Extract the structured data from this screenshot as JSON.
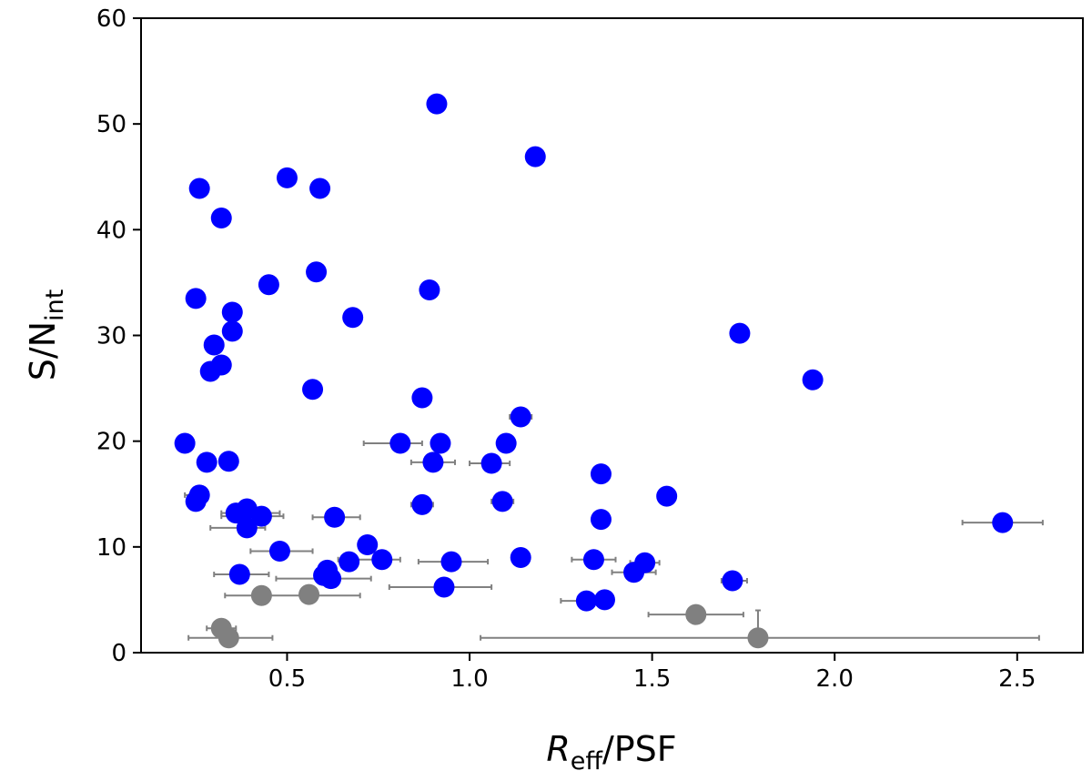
{
  "chart_data": {
    "type": "scatter",
    "title": "",
    "xlabel": {
      "main": "R",
      "sub": "eff",
      "rest": "/PSF"
    },
    "ylabel": {
      "main": "S/N",
      "sub": "int"
    },
    "xlim": [
      0.1,
      2.68
    ],
    "ylim": [
      0,
      60
    ],
    "xticks": [
      0.5,
      1.0,
      1.5,
      2.0,
      2.5
    ],
    "xtick_labels": [
      "0.5",
      "1.0",
      "1.5",
      "2.0",
      "2.5"
    ],
    "yticks": [
      0,
      10,
      20,
      30,
      40,
      50,
      60
    ],
    "ytick_labels": [
      "0",
      "10",
      "20",
      "30",
      "40",
      "50",
      "60"
    ],
    "grid": false,
    "colors": {
      "blue": "#0000ff",
      "gray": "#808080",
      "errorbar": "#808080"
    },
    "series": [
      {
        "color": "blue",
        "points": [
          {
            "x": 0.91,
            "y": 51.9
          },
          {
            "x": 1.18,
            "y": 46.9
          },
          {
            "x": 0.26,
            "y": 43.9
          },
          {
            "x": 0.5,
            "y": 44.9
          },
          {
            "x": 0.59,
            "y": 43.9
          },
          {
            "x": 0.32,
            "y": 41.1
          },
          {
            "x": 0.58,
            "y": 36.0
          },
          {
            "x": 0.45,
            "y": 34.8
          },
          {
            "x": 0.89,
            "y": 34.3
          },
          {
            "x": 0.25,
            "y": 33.5
          },
          {
            "x": 0.35,
            "y": 32.2
          },
          {
            "x": 0.68,
            "y": 31.7
          },
          {
            "x": 0.35,
            "y": 30.4
          },
          {
            "x": 0.3,
            "y": 29.1
          },
          {
            "x": 0.32,
            "y": 27.2
          },
          {
            "x": 0.29,
            "y": 26.6
          },
          {
            "x": 1.74,
            "y": 30.2
          },
          {
            "x": 1.94,
            "y": 25.8
          },
          {
            "x": 0.57,
            "y": 24.9
          },
          {
            "x": 0.87,
            "y": 24.1
          },
          {
            "x": 1.14,
            "y": 22.3
          },
          {
            "x": 0.22,
            "y": 19.8
          },
          {
            "x": 0.81,
            "y": 19.8
          },
          {
            "x": 0.92,
            "y": 19.8
          },
          {
            "x": 1.1,
            "y": 19.8
          },
          {
            "x": 0.28,
            "y": 18.0
          },
          {
            "x": 0.34,
            "y": 18.1
          },
          {
            "x": 0.9,
            "y": 18.0
          },
          {
            "x": 1.06,
            "y": 17.9
          },
          {
            "x": 1.36,
            "y": 16.9
          },
          {
            "x": 1.54,
            "y": 14.8
          },
          {
            "x": 0.26,
            "y": 14.9
          },
          {
            "x": 0.25,
            "y": 14.3
          },
          {
            "x": 0.87,
            "y": 14.0
          },
          {
            "x": 1.09,
            "y": 14.3
          },
          {
            "x": 0.36,
            "y": 13.2
          },
          {
            "x": 0.39,
            "y": 13.6
          },
          {
            "x": 0.43,
            "y": 12.9
          },
          {
            "x": 0.39,
            "y": 11.8
          },
          {
            "x": 0.63,
            "y": 12.8
          },
          {
            "x": 1.36,
            "y": 12.6
          },
          {
            "x": 2.46,
            "y": 12.3
          },
          {
            "x": 0.72,
            "y": 10.2
          },
          {
            "x": 0.48,
            "y": 9.6
          },
          {
            "x": 0.76,
            "y": 8.8
          },
          {
            "x": 0.67,
            "y": 8.6
          },
          {
            "x": 0.95,
            "y": 8.6
          },
          {
            "x": 1.14,
            "y": 9.0
          },
          {
            "x": 1.34,
            "y": 8.8
          },
          {
            "x": 1.48,
            "y": 8.5
          },
          {
            "x": 1.45,
            "y": 7.6
          },
          {
            "x": 0.37,
            "y": 7.4
          },
          {
            "x": 0.6,
            "y": 7.3
          },
          {
            "x": 0.61,
            "y": 7.8
          },
          {
            "x": 0.62,
            "y": 7.0
          },
          {
            "x": 0.93,
            "y": 6.2
          },
          {
            "x": 1.72,
            "y": 6.8
          },
          {
            "x": 1.32,
            "y": 4.9
          },
          {
            "x": 1.37,
            "y": 5.0
          }
        ]
      },
      {
        "color": "gray",
        "points": [
          {
            "x": 0.43,
            "y": 5.4
          },
          {
            "x": 0.56,
            "y": 5.5
          },
          {
            "x": 1.62,
            "y": 3.6
          },
          {
            "x": 0.32,
            "y": 2.3
          },
          {
            "x": 0.34,
            "y": 1.4
          },
          {
            "x": 1.79,
            "y": 1.4
          }
        ]
      }
    ],
    "error_bars": [
      {
        "xmin": 0.71,
        "xmax": 0.87,
        "y": 19.8
      },
      {
        "xmin": 0.84,
        "xmax": 0.96,
        "y": 18.0
      },
      {
        "xmin": 1.0,
        "xmax": 1.11,
        "y": 17.9
      },
      {
        "xmin": 1.11,
        "xmax": 1.17,
        "y": 22.3
      },
      {
        "xmin": 0.32,
        "xmax": 0.48,
        "y": 13.2
      },
      {
        "xmin": 0.29,
        "xmax": 0.44,
        "y": 11.8
      },
      {
        "xmin": 0.32,
        "xmax": 0.49,
        "y": 12.9
      },
      {
        "xmin": 0.57,
        "xmax": 0.7,
        "y": 12.8
      },
      {
        "xmin": 0.4,
        "xmax": 0.57,
        "y": 9.6
      },
      {
        "xmin": 0.64,
        "xmax": 0.81,
        "y": 8.8
      },
      {
        "xmin": 0.86,
        "xmax": 1.05,
        "y": 8.6
      },
      {
        "xmin": 0.22,
        "xmax": 0.28,
        "y": 14.9
      },
      {
        "xmin": 0.84,
        "xmax": 0.9,
        "y": 14.0
      },
      {
        "xmin": 1.06,
        "xmax": 1.12,
        "y": 14.3
      },
      {
        "xmin": 1.28,
        "xmax": 1.4,
        "y": 8.8
      },
      {
        "xmin": 1.44,
        "xmax": 1.52,
        "y": 8.5
      },
      {
        "xmin": 1.39,
        "xmax": 1.51,
        "y": 7.6
      },
      {
        "xmin": 1.69,
        "xmax": 1.76,
        "y": 6.8
      },
      {
        "xmin": 2.35,
        "xmax": 2.57,
        "y": 12.3
      },
      {
        "xmin": 0.3,
        "xmax": 0.45,
        "y": 7.4
      },
      {
        "xmin": 0.47,
        "xmax": 0.73,
        "y": 7.0
      },
      {
        "xmin": 0.78,
        "xmax": 1.06,
        "y": 6.2
      },
      {
        "xmin": 1.25,
        "xmax": 1.39,
        "y": 4.9
      },
      {
        "xmin": 0.33,
        "xmax": 0.7,
        "y": 5.4
      },
      {
        "xmin": 1.49,
        "xmax": 1.75,
        "y": 3.6
      },
      {
        "xmin": 0.28,
        "xmax": 0.36,
        "y": 2.3
      },
      {
        "xmin": 0.23,
        "xmax": 0.46,
        "y": 1.4
      },
      {
        "xmin": 1.03,
        "xmax": 2.56,
        "y": 1.4
      }
    ],
    "y_error_bars": [
      {
        "x": 1.79,
        "ymin": 1.4,
        "ymax": 4.0
      }
    ]
  }
}
